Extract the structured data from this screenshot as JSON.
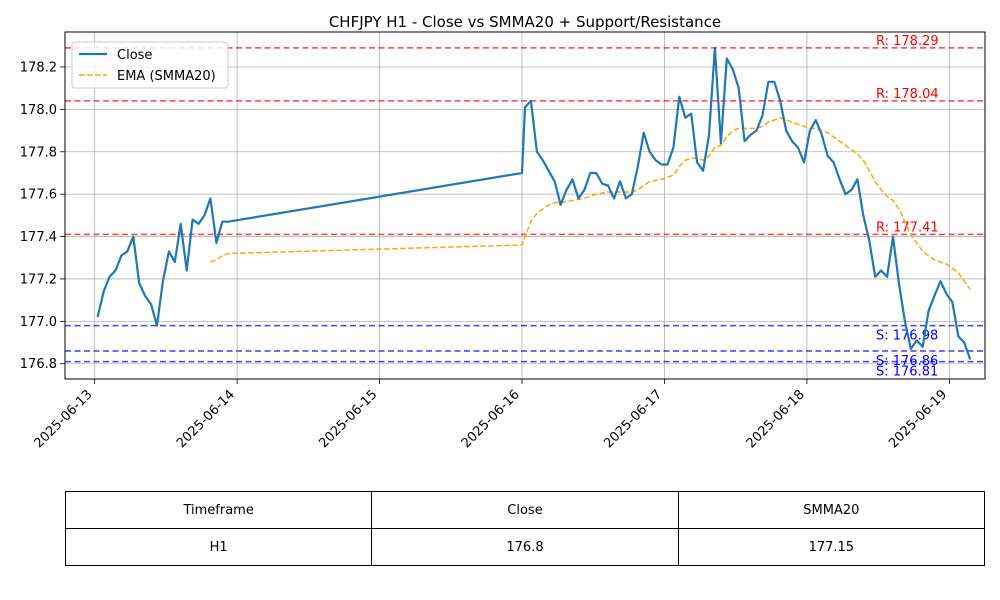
{
  "chart_data": {
    "type": "line",
    "title": "CHFJPY H1 - Close vs SMMA20 + Support/Resistance",
    "xlabel": "",
    "ylabel": "",
    "xlim": [
      "2025-06-12T19:00",
      "2025-06-19T06:00"
    ],
    "ylim": [
      176.728,
      178.365
    ],
    "x_ticks": [
      "2025-06-13",
      "2025-06-14",
      "2025-06-15",
      "2025-06-16",
      "2025-06-17",
      "2025-06-18",
      "2025-06-19"
    ],
    "y_ticks": [
      "176.8",
      "177.0",
      "177.2",
      "177.4",
      "177.6",
      "177.8",
      "178.0",
      "178.2"
    ],
    "grid": true,
    "legend": "top-left",
    "series": [
      {
        "name": "Close",
        "color": "#1f77b4",
        "style": "solid",
        "points": [
          [
            "2025-06-13T00:30",
            177.02
          ],
          [
            "2025-06-13T01:30",
            177.14
          ],
          [
            "2025-06-13T02:30",
            177.21
          ],
          [
            "2025-06-13T03:30",
            177.24
          ],
          [
            "2025-06-13T04:30",
            177.31
          ],
          [
            "2025-06-13T05:30",
            177.33
          ],
          [
            "2025-06-13T06:30",
            177.4
          ],
          [
            "2025-06-13T07:30",
            177.18
          ],
          [
            "2025-06-13T08:30",
            177.12
          ],
          [
            "2025-06-13T09:30",
            177.08
          ],
          [
            "2025-06-13T10:30",
            176.98
          ],
          [
            "2025-06-13T11:30",
            177.19
          ],
          [
            "2025-06-13T12:30",
            177.33
          ],
          [
            "2025-06-13T13:30",
            177.28
          ],
          [
            "2025-06-13T14:30",
            177.46
          ],
          [
            "2025-06-13T15:30",
            177.24
          ],
          [
            "2025-06-13T16:30",
            177.48
          ],
          [
            "2025-06-13T17:30",
            177.46
          ],
          [
            "2025-06-13T18:30",
            177.5
          ],
          [
            "2025-06-13T19:30",
            177.58
          ],
          [
            "2025-06-13T20:30",
            177.37
          ],
          [
            "2025-06-13T21:30",
            177.47
          ],
          [
            "2025-06-13T22:30",
            177.47
          ],
          [
            "2025-06-16T00:00",
            177.7
          ],
          [
            "2025-06-16T00:30",
            178.01
          ],
          [
            "2025-06-16T01:30",
            178.04
          ],
          [
            "2025-06-16T02:30",
            177.8
          ],
          [
            "2025-06-16T03:30",
            177.76
          ],
          [
            "2025-06-16T04:30",
            177.71
          ],
          [
            "2025-06-16T05:30",
            177.66
          ],
          [
            "2025-06-16T06:30",
            177.55
          ],
          [
            "2025-06-16T07:30",
            177.62
          ],
          [
            "2025-06-16T08:30",
            177.67
          ],
          [
            "2025-06-16T09:30",
            177.58
          ],
          [
            "2025-06-16T10:30",
            177.62
          ],
          [
            "2025-06-16T11:30",
            177.7
          ],
          [
            "2025-06-16T12:30",
            177.7
          ],
          [
            "2025-06-16T13:30",
            177.65
          ],
          [
            "2025-06-16T14:30",
            177.64
          ],
          [
            "2025-06-16T15:30",
            177.58
          ],
          [
            "2025-06-16T16:30",
            177.66
          ],
          [
            "2025-06-16T17:30",
            177.58
          ],
          [
            "2025-06-16T18:30",
            177.6
          ],
          [
            "2025-06-16T19:30",
            177.73
          ],
          [
            "2025-06-16T20:30",
            177.89
          ],
          [
            "2025-06-16T21:30",
            177.8
          ],
          [
            "2025-06-16T22:30",
            177.76
          ],
          [
            "2025-06-16T23:30",
            177.74
          ],
          [
            "2025-06-17T00:30",
            177.74
          ],
          [
            "2025-06-17T01:30",
            177.82
          ],
          [
            "2025-06-17T02:30",
            178.06
          ],
          [
            "2025-06-17T03:30",
            177.96
          ],
          [
            "2025-06-17T04:30",
            177.98
          ],
          [
            "2025-06-17T05:30",
            177.75
          ],
          [
            "2025-06-17T06:30",
            177.71
          ],
          [
            "2025-06-17T07:30",
            177.88
          ],
          [
            "2025-06-17T08:30",
            178.29
          ],
          [
            "2025-06-17T09:30",
            177.84
          ],
          [
            "2025-06-17T10:30",
            178.24
          ],
          [
            "2025-06-17T11:30",
            178.19
          ],
          [
            "2025-06-17T12:30",
            178.1
          ],
          [
            "2025-06-17T13:30",
            177.85
          ],
          [
            "2025-06-17T14:30",
            177.88
          ],
          [
            "2025-06-17T15:30",
            177.9
          ],
          [
            "2025-06-17T16:30",
            177.97
          ],
          [
            "2025-06-17T17:30",
            178.13
          ],
          [
            "2025-06-17T18:30",
            178.13
          ],
          [
            "2025-06-17T19:30",
            178.04
          ],
          [
            "2025-06-17T20:30",
            177.9
          ],
          [
            "2025-06-17T21:30",
            177.85
          ],
          [
            "2025-06-17T22:30",
            177.82
          ],
          [
            "2025-06-17T23:30",
            177.75
          ],
          [
            "2025-06-18T00:30",
            177.9
          ],
          [
            "2025-06-18T01:30",
            177.95
          ],
          [
            "2025-06-18T02:30",
            177.88
          ],
          [
            "2025-06-18T03:30",
            177.78
          ],
          [
            "2025-06-18T04:30",
            177.75
          ],
          [
            "2025-06-18T05:30",
            177.67
          ],
          [
            "2025-06-18T06:30",
            177.6
          ],
          [
            "2025-06-18T07:30",
            177.62
          ],
          [
            "2025-06-18T08:30",
            177.67
          ],
          [
            "2025-06-18T09:30",
            177.5
          ],
          [
            "2025-06-18T10:30",
            177.38
          ],
          [
            "2025-06-18T11:30",
            177.21
          ],
          [
            "2025-06-18T12:30",
            177.24
          ],
          [
            "2025-06-18T13:30",
            177.21
          ],
          [
            "2025-06-18T14:30",
            177.4
          ],
          [
            "2025-06-18T15:30",
            177.18
          ],
          [
            "2025-06-18T16:30",
            177.0
          ],
          [
            "2025-06-18T17:30",
            176.87
          ],
          [
            "2025-06-18T18:30",
            176.91
          ],
          [
            "2025-06-18T19:30",
            176.88
          ],
          [
            "2025-06-18T20:30",
            177.05
          ],
          [
            "2025-06-18T21:30",
            177.12
          ],
          [
            "2025-06-18T22:30",
            177.19
          ],
          [
            "2025-06-18T23:30",
            177.13
          ],
          [
            "2025-06-19T00:30",
            177.09
          ],
          [
            "2025-06-19T01:30",
            176.93
          ],
          [
            "2025-06-19T02:30",
            176.9
          ],
          [
            "2025-06-19T03:30",
            176.82
          ]
        ]
      },
      {
        "name": "EMA (SMMA20)",
        "color": "#ffa500",
        "style": "dashed",
        "points": [
          [
            "2025-06-13T19:30",
            177.28
          ],
          [
            "2025-06-13T20:30",
            177.29
          ],
          [
            "2025-06-13T21:30",
            177.31
          ],
          [
            "2025-06-13T22:30",
            177.32
          ],
          [
            "2025-06-16T00:00",
            177.36
          ],
          [
            "2025-06-16T00:30",
            177.4
          ],
          [
            "2025-06-16T01:30",
            177.47
          ],
          [
            "2025-06-16T02:30",
            177.51
          ],
          [
            "2025-06-16T03:30",
            177.53
          ],
          [
            "2025-06-16T04:30",
            177.55
          ],
          [
            "2025-06-16T05:30",
            177.56
          ],
          [
            "2025-06-16T06:30",
            177.56
          ],
          [
            "2025-06-16T08:30",
            177.57
          ],
          [
            "2025-06-16T10:30",
            177.58
          ],
          [
            "2025-06-16T12:30",
            177.6
          ],
          [
            "2025-06-16T14:30",
            177.61
          ],
          [
            "2025-06-16T16:30",
            177.61
          ],
          [
            "2025-06-16T18:30",
            177.61
          ],
          [
            "2025-06-16T19:30",
            177.62
          ],
          [
            "2025-06-16T20:30",
            177.64
          ],
          [
            "2025-06-16T21:30",
            177.66
          ],
          [
            "2025-06-16T23:30",
            177.67
          ],
          [
            "2025-06-17T00:30",
            177.68
          ],
          [
            "2025-06-17T01:30",
            177.69
          ],
          [
            "2025-06-17T02:30",
            177.73
          ],
          [
            "2025-06-17T03:30",
            177.76
          ],
          [
            "2025-06-17T04:30",
            177.77
          ],
          [
            "2025-06-17T05:30",
            177.77
          ],
          [
            "2025-06-17T06:30",
            177.76
          ],
          [
            "2025-06-17T07:30",
            177.78
          ],
          [
            "2025-06-17T08:30",
            177.82
          ],
          [
            "2025-06-17T09:30",
            177.83
          ],
          [
            "2025-06-17T10:30",
            177.87
          ],
          [
            "2025-06-17T11:30",
            177.9
          ],
          [
            "2025-06-17T12:30",
            177.91
          ],
          [
            "2025-06-17T13:30",
            177.91
          ],
          [
            "2025-06-17T15:30",
            177.91
          ],
          [
            "2025-06-17T16:30",
            177.92
          ],
          [
            "2025-06-17T17:30",
            177.94
          ],
          [
            "2025-06-17T18:30",
            177.95
          ],
          [
            "2025-06-17T19:30",
            177.96
          ],
          [
            "2025-06-17T20:30",
            177.95
          ],
          [
            "2025-06-17T21:30",
            177.94
          ],
          [
            "2025-06-17T22:30",
            177.93
          ],
          [
            "2025-06-17T23:30",
            177.92
          ],
          [
            "2025-06-18T00:30",
            177.91
          ],
          [
            "2025-06-18T01:30",
            177.91
          ],
          [
            "2025-06-18T02:30",
            177.9
          ],
          [
            "2025-06-18T03:30",
            177.89
          ],
          [
            "2025-06-18T04:30",
            177.87
          ],
          [
            "2025-06-18T05:30",
            177.85
          ],
          [
            "2025-06-18T06:30",
            177.83
          ],
          [
            "2025-06-18T07:30",
            177.81
          ],
          [
            "2025-06-18T08:30",
            177.79
          ],
          [
            "2025-06-18T09:30",
            177.76
          ],
          [
            "2025-06-18T10:30",
            177.71
          ],
          [
            "2025-06-18T11:30",
            177.66
          ],
          [
            "2025-06-18T12:30",
            177.62
          ],
          [
            "2025-06-18T13:30",
            177.59
          ],
          [
            "2025-06-18T14:30",
            177.57
          ],
          [
            "2025-06-18T15:30",
            177.53
          ],
          [
            "2025-06-18T16:30",
            177.47
          ],
          [
            "2025-06-18T17:30",
            177.41
          ],
          [
            "2025-06-18T18:30",
            177.37
          ],
          [
            "2025-06-18T19:30",
            177.33
          ],
          [
            "2025-06-18T20:30",
            177.31
          ],
          [
            "2025-06-18T21:30",
            177.29
          ],
          [
            "2025-06-18T22:30",
            177.28
          ],
          [
            "2025-06-18T23:30",
            177.27
          ],
          [
            "2025-06-19T00:30",
            177.25
          ],
          [
            "2025-06-19T01:30",
            177.23
          ],
          [
            "2025-06-19T02:30",
            177.19
          ],
          [
            "2025-06-19T03:30",
            177.15
          ]
        ]
      }
    ],
    "levels": [
      {
        "kind": "resistance",
        "value": 178.29,
        "label": "R: 178.29",
        "color": "#ff0000"
      },
      {
        "kind": "resistance",
        "value": 178.04,
        "label": "R: 178.04",
        "color": "#ff0000"
      },
      {
        "kind": "resistance",
        "value": 177.41,
        "label": "R: 177.41",
        "color": "#ff0000"
      },
      {
        "kind": "support",
        "value": 176.98,
        "label": "S: 176.98",
        "color": "#0000ff"
      },
      {
        "kind": "support",
        "value": 176.86,
        "label": "S: 176.86",
        "color": "#0000ff"
      },
      {
        "kind": "support",
        "value": 176.81,
        "label": "S: 176.81",
        "color": "#0000ff"
      }
    ]
  },
  "table": {
    "headers": [
      "Timeframe",
      "Close",
      "SMMA20"
    ],
    "rows": [
      [
        "H1",
        "176.8",
        "177.15"
      ]
    ]
  }
}
